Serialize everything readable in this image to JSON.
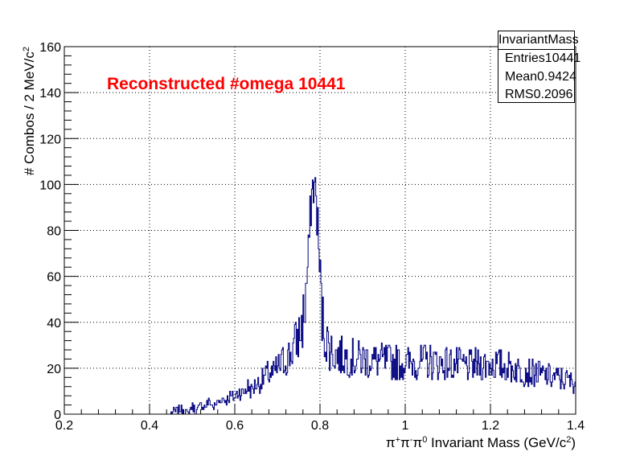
{
  "chart_data": {
    "type": "histogram",
    "title": "Reconstructed #omega 10441",
    "xlabel_parts": [
      "π",
      "+",
      "π",
      "-",
      "π",
      "0",
      " Invariant Mass (GeV/c",
      "2",
      ")"
    ],
    "ylabel_parts": [
      "# Combos / 2 MeV/c",
      "2"
    ],
    "xlim": [
      0.2,
      1.4
    ],
    "ylim": [
      0,
      160
    ],
    "bin_width": 0.002,
    "x_ticks": [
      "0.2",
      "0.4",
      "0.6",
      "0.8",
      "1",
      "1.2",
      "1.4"
    ],
    "x_tick_values": [
      0.2,
      0.4,
      0.6,
      0.8,
      1.0,
      1.2,
      1.4
    ],
    "y_ticks": [
      "0",
      "20",
      "40",
      "60",
      "80",
      "100",
      "120",
      "140",
      "160"
    ],
    "y_tick_values": [
      0,
      20,
      40,
      60,
      80,
      100,
      120,
      140,
      160
    ],
    "grid": true,
    "line_color": "#00007f",
    "title_color": "#ff0000",
    "points": [
      [
        0.45,
        1
      ],
      [
        0.48,
        2
      ],
      [
        0.49,
        0
      ],
      [
        0.5,
        4
      ],
      [
        0.51,
        1
      ],
      [
        0.52,
        4
      ],
      [
        0.53,
        3
      ],
      [
        0.54,
        6
      ],
      [
        0.55,
        3
      ],
      [
        0.56,
        5
      ],
      [
        0.57,
        7
      ],
      [
        0.58,
        6
      ],
      [
        0.59,
        8
      ],
      [
        0.6,
        7
      ],
      [
        0.61,
        10
      ],
      [
        0.62,
        9
      ],
      [
        0.63,
        12
      ],
      [
        0.64,
        10
      ],
      [
        0.65,
        13
      ],
      [
        0.66,
        14
      ],
      [
        0.67,
        16
      ],
      [
        0.68,
        18
      ],
      [
        0.69,
        17
      ],
      [
        0.7,
        20
      ],
      [
        0.71,
        22
      ],
      [
        0.72,
        24
      ],
      [
        0.73,
        26
      ],
      [
        0.74,
        30
      ],
      [
        0.75,
        34
      ],
      [
        0.76,
        40
      ],
      [
        0.765,
        48
      ],
      [
        0.77,
        60
      ],
      [
        0.775,
        78
      ],
      [
        0.78,
        95
      ],
      [
        0.785,
        100
      ],
      [
        0.79,
        96
      ],
      [
        0.795,
        82
      ],
      [
        0.8,
        58
      ],
      [
        0.805,
        42
      ],
      [
        0.81,
        36
      ],
      [
        0.82,
        30
      ],
      [
        0.83,
        27
      ],
      [
        0.85,
        25
      ],
      [
        0.9,
        24
      ],
      [
        0.95,
        23
      ],
      [
        1.0,
        22
      ],
      [
        1.05,
        23
      ],
      [
        1.1,
        22
      ],
      [
        1.15,
        21
      ],
      [
        1.2,
        22
      ],
      [
        1.25,
        20
      ],
      [
        1.3,
        18
      ],
      [
        1.35,
        16
      ],
      [
        1.4,
        14
      ]
    ]
  },
  "stats": {
    "name": "InvariantMass",
    "rows": [
      {
        "label": "Entries",
        "value": "10441"
      },
      {
        "label": "Mean",
        "value": "0.9424"
      },
      {
        "label": "RMS",
        "value": "0.2096"
      }
    ]
  }
}
